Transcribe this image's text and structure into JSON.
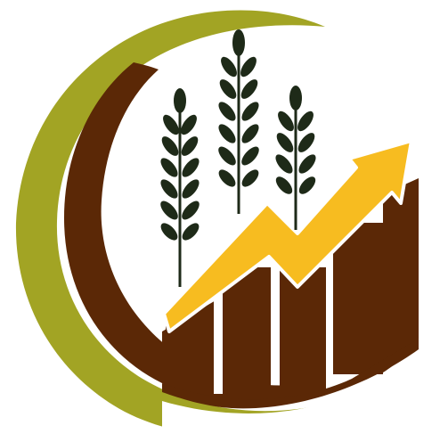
{
  "logo": {
    "icon": "agriculture-growth-logo-icon",
    "elements": [
      "olive-crescent",
      "brown-crescent",
      "wheat-stalks",
      "bar-chart",
      "up-trend-arrow"
    ],
    "colors": {
      "olive": "#a2a424",
      "brown": "#5b2806",
      "wheat": "#1e2a18",
      "arrow": "#f7bc20",
      "background": "#ffffff"
    }
  }
}
